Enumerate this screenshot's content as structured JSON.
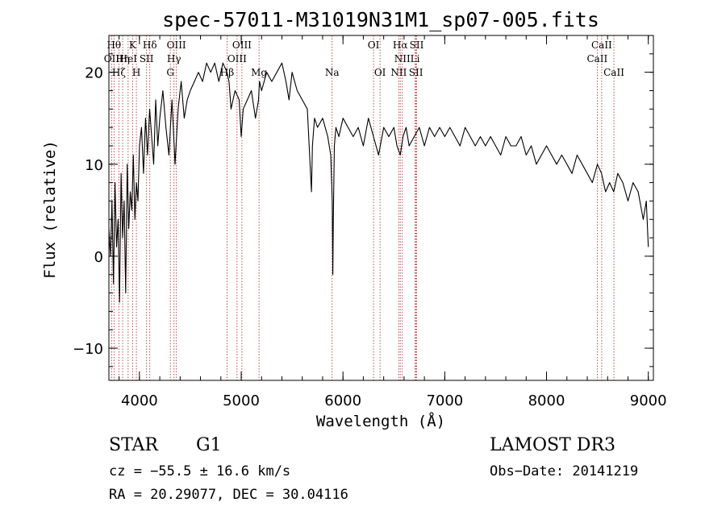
{
  "chart_data": {
    "type": "line",
    "title": "spec-57011-M31019N31M1_sp07-005.fits",
    "xlabel": "Wavelength (Å)",
    "ylabel": "Flux (relative)",
    "xlim": [
      3700,
      9050
    ],
    "ylim": [
      -13.5,
      24
    ],
    "x_ticks": [
      {
        "value": 4000,
        "label": "4000"
      },
      {
        "value": 5000,
        "label": "5000"
      },
      {
        "value": 6000,
        "label": "6000"
      },
      {
        "value": 7000,
        "label": "7000"
      },
      {
        "value": 8000,
        "label": "8000"
      },
      {
        "value": 9000,
        "label": "9000"
      }
    ],
    "y_ticks": [
      {
        "value": -10,
        "label": "−10"
      },
      {
        "value": 0,
        "label": "0"
      },
      {
        "value": 10,
        "label": "10"
      },
      {
        "value": 20,
        "label": "20"
      }
    ],
    "x_minor_step": 200,
    "y_minor_step": 2,
    "line_color": "#000000",
    "marker_color": "#b22222",
    "spectrum": {
      "name": "flux",
      "x": [
        3700,
        3715,
        3730,
        3745,
        3760,
        3775,
        3790,
        3805,
        3820,
        3835,
        3850,
        3865,
        3880,
        3895,
        3910,
        3925,
        3940,
        3955,
        3970,
        3985,
        4000,
        4020,
        4040,
        4060,
        4080,
        4100,
        4120,
        4140,
        4160,
        4180,
        4200,
        4230,
        4260,
        4290,
        4320,
        4350,
        4380,
        4410,
        4440,
        4470,
        4500,
        4540,
        4580,
        4620,
        4660,
        4700,
        4740,
        4780,
        4820,
        4860,
        4880,
        4900,
        4940,
        4980,
        5000,
        5020,
        5060,
        5100,
        5140,
        5170,
        5180,
        5200,
        5250,
        5300,
        5350,
        5400,
        5440,
        5470,
        5500,
        5550,
        5600,
        5650,
        5690,
        5700,
        5720,
        5750,
        5800,
        5850,
        5880,
        5895,
        5900,
        5905,
        5915,
        5930,
        5960,
        6000,
        6050,
        6100,
        6150,
        6200,
        6250,
        6300,
        6350,
        6400,
        6450,
        6500,
        6530,
        6563,
        6590,
        6620,
        6650,
        6700,
        6750,
        6800,
        6850,
        6900,
        6950,
        7000,
        7050,
        7100,
        7150,
        7200,
        7250,
        7300,
        7350,
        7400,
        7450,
        7500,
        7550,
        7600,
        7650,
        7700,
        7750,
        7800,
        7850,
        7900,
        7950,
        8000,
        8050,
        8100,
        8150,
        8200,
        8250,
        8300,
        8350,
        8400,
        8450,
        8500,
        8540,
        8580,
        8620,
        8660,
        8700,
        8750,
        8800,
        8850,
        8900,
        8950,
        8980,
        9000
      ],
      "y": [
        3,
        0,
        6,
        -3,
        8,
        1,
        4,
        -5,
        9,
        2,
        6,
        -4,
        10,
        3,
        7,
        5,
        11,
        4,
        8,
        6,
        12,
        14,
        9,
        15,
        11,
        16,
        13,
        10,
        17,
        12,
        15,
        18,
        14,
        11,
        17,
        10,
        16,
        19,
        15,
        17,
        18,
        19,
        20,
        19,
        21,
        20,
        21,
        19,
        21,
        20,
        19,
        16,
        18,
        17,
        13,
        16,
        17,
        18,
        15,
        17,
        19,
        18,
        20,
        19,
        20,
        21,
        19,
        17,
        20,
        18,
        17,
        16,
        7,
        12,
        15,
        14,
        15,
        13,
        11,
        6,
        -2,
        4,
        12,
        14,
        13,
        15,
        14,
        13,
        14,
        12,
        15,
        13,
        11,
        14,
        13,
        14,
        12,
        11,
        13,
        14,
        12,
        13,
        14,
        12,
        14,
        13,
        14,
        13,
        14,
        13,
        12,
        14,
        13,
        12,
        13,
        12,
        13,
        12,
        11,
        13,
        12,
        12,
        13,
        11,
        12,
        10,
        11,
        12,
        11,
        10,
        11,
        10,
        9,
        11,
        10,
        9,
        8,
        10,
        9,
        7,
        8,
        7,
        9,
        8,
        6,
        8,
        7,
        4,
        6,
        1
      ]
    },
    "spectral_lines": [
      {
        "wl": 3750,
        "label": "Hθ",
        "row": 0
      },
      {
        "wl": 3933,
        "label": "K",
        "row": 0
      },
      {
        "wl": 4102,
        "label": "Hδ",
        "row": 0
      },
      {
        "wl": 4363,
        "label": "OIII",
        "row": 0
      },
      {
        "wl": 5007,
        "label": "OIII",
        "row": 0
      },
      {
        "wl": 6300,
        "label": "OI",
        "row": 0
      },
      {
        "wl": 6563,
        "label": "Hα",
        "row": 0
      },
      {
        "wl": 6724,
        "label": "SII",
        "row": 0
      },
      {
        "wl": 8542,
        "label": "CaII",
        "row": 0
      },
      {
        "wl": 3727,
        "label": "OII",
        "row": 1
      },
      {
        "wl": 3835,
        "label": "Hη",
        "row": 1
      },
      {
        "wl": 3889,
        "label": "HeI",
        "row": 1
      },
      {
        "wl": 4070,
        "label": "SII",
        "row": 1
      },
      {
        "wl": 4340,
        "label": "Hγ",
        "row": 1
      },
      {
        "wl": 4959,
        "label": "OIII",
        "row": 1
      },
      {
        "wl": 6583,
        "label": "NII",
        "row": 1
      },
      {
        "wl": 6708,
        "label": "Li",
        "row": 1
      },
      {
        "wl": 8498,
        "label": "CaII",
        "row": 1
      },
      {
        "wl": 3798,
        "label": "Hζ",
        "row": 2
      },
      {
        "wl": 3970,
        "label": "H",
        "row": 2
      },
      {
        "wl": 4304,
        "label": "G",
        "row": 2
      },
      {
        "wl": 4861,
        "label": "Hβ",
        "row": 2
      },
      {
        "wl": 5175,
        "label": "Mg",
        "row": 2
      },
      {
        "wl": 5893,
        "label": "Na",
        "row": 2
      },
      {
        "wl": 6364,
        "label": "OI",
        "row": 2
      },
      {
        "wl": 6548,
        "label": "NII",
        "row": 2
      },
      {
        "wl": 6717,
        "label": "SII",
        "row": 2
      },
      {
        "wl": 8662,
        "label": "CaII",
        "row": 2
      }
    ]
  },
  "info": {
    "object_class": "STAR",
    "subclass": "G1",
    "survey": "LAMOST DR3",
    "redshift": "cz = −55.5 ± 16.6 km/s",
    "obs_date": "Obs−Date: 20141219",
    "coords": "RA =  20.29077, DEC =  30.04116"
  }
}
